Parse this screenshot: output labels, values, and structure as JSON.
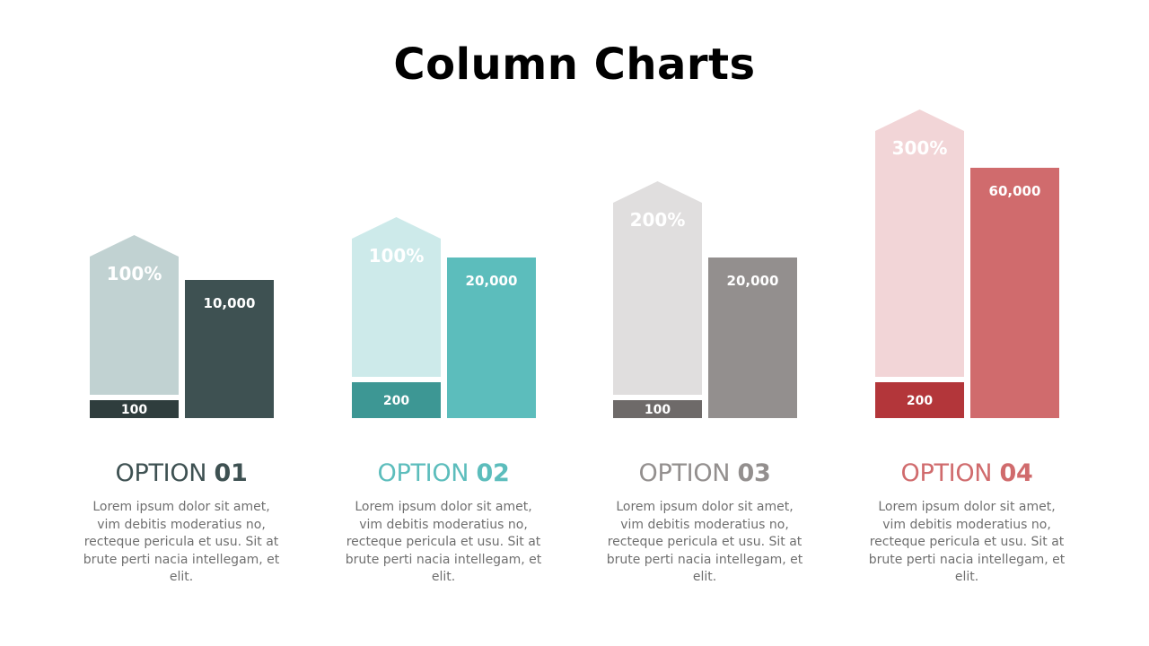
{
  "title": "Column Charts",
  "chart_data": {
    "type": "bar",
    "categories": [
      "OPTION 01",
      "OPTION 02",
      "OPTION 03",
      "OPTION 04"
    ],
    "series": [
      {
        "values": [
          100,
          200,
          100,
          200
        ],
        "labels": [
          "100",
          "200",
          "100",
          "200"
        ]
      },
      {
        "values": [
          100,
          100,
          200,
          300
        ],
        "labels": [
          "100%",
          "100%",
          "200%",
          "300%"
        ]
      },
      {
        "values": [
          10000,
          20000,
          20000,
          60000
        ],
        "labels": [
          "10,000",
          "20,000",
          "20,000",
          "60,000"
        ]
      }
    ]
  },
  "options": [
    {
      "label": "OPTION",
      "number": "01",
      "description": "Lorem ipsum dolor sit amet, vim debitis moderatius no, recteque pericula et usu. Sit at brute perti nacia intellegam, et elit.",
      "colors": {
        "base": "#2f3d3d",
        "arrow": "#c1d2d2",
        "bar": "#3e5152",
        "title": "#3e5152"
      }
    },
    {
      "label": "OPTION",
      "number": "02",
      "description": "Lorem ipsum dolor sit amet, vim debitis moderatius no, recteque pericula et usu. Sit at brute perti nacia intellegam, et elit.",
      "colors": {
        "base": "#3d9794",
        "arrow": "#cdeaea",
        "bar": "#5cbdbc",
        "title": "#5cbdbc"
      }
    },
    {
      "label": "OPTION",
      "number": "03",
      "description": "Lorem ipsum dolor sit amet, vim debitis moderatius no, recteque pericula et usu. Sit at brute perti nacia intellegam, et elit.",
      "colors": {
        "base": "#6e6a69",
        "arrow": "#e0dede",
        "bar": "#938f8e",
        "title": "#938f8e"
      }
    },
    {
      "label": "OPTION",
      "number": "04",
      "description": "Lorem ipsum dolor sit amet, vim debitis moderatius no, recteque pericula et usu. Sit at brute perti nacia intellegam, et elit.",
      "colors": {
        "base": "#b3363a",
        "arrow": "#f2d5d7",
        "bar": "#d06b6d",
        "title": "#d06b6d"
      }
    }
  ]
}
